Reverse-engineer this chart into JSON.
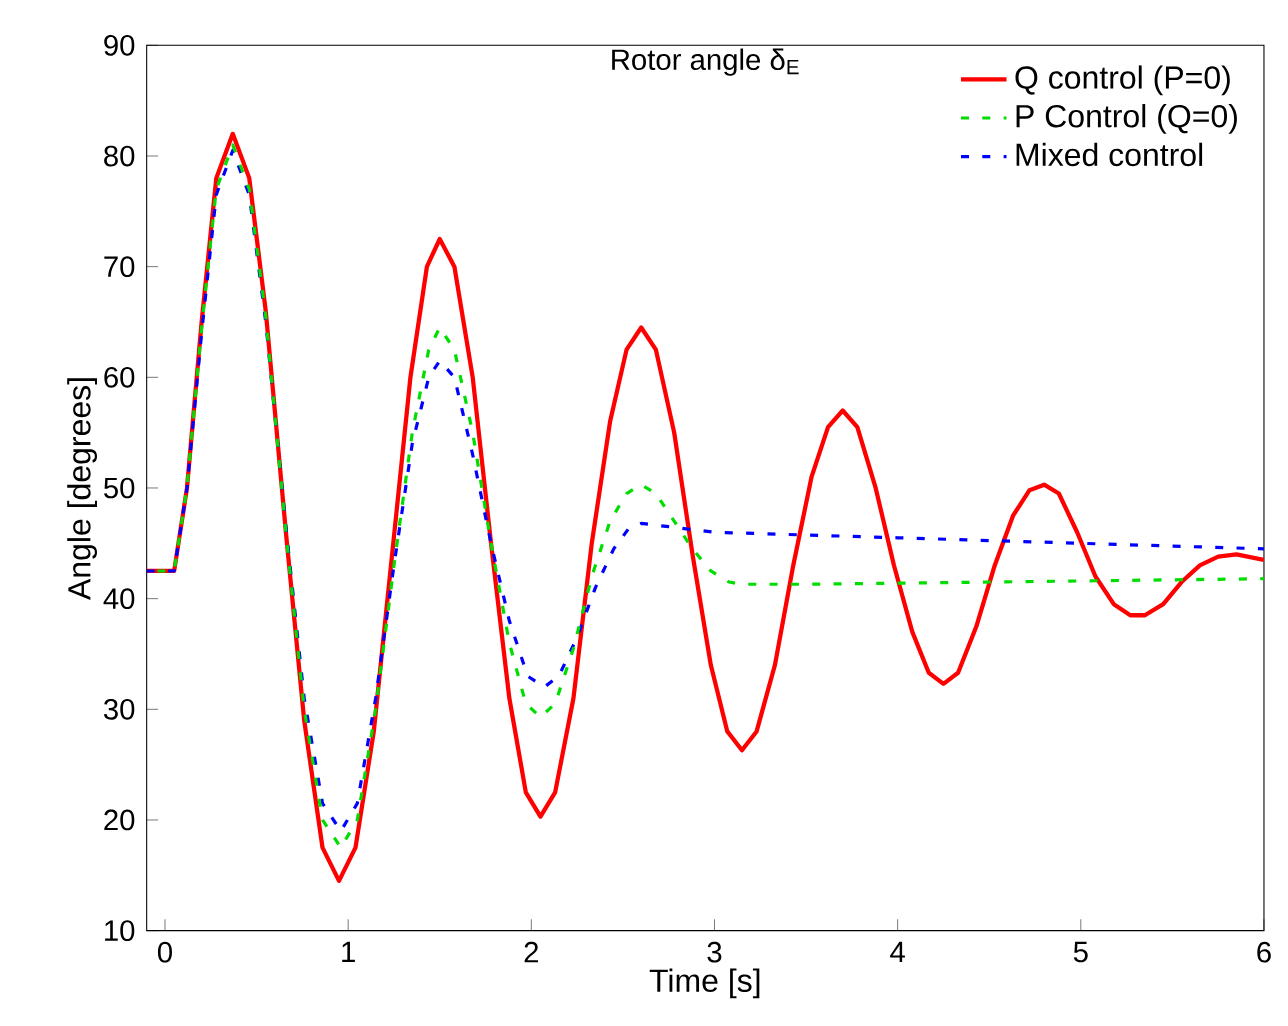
{
  "chart_data": {
    "type": "line",
    "title": "Rotor angle δ$_{E}$",
    "xlabel": "Time [s]",
    "ylabel": "Angle [degrees]",
    "xlim": [
      -0.1,
      6
    ],
    "xticks": [
      0,
      1,
      2,
      3,
      4,
      5,
      6
    ],
    "ylim": [
      10,
      90
    ],
    "yticks": [
      10,
      20,
      30,
      40,
      50,
      60,
      70,
      80,
      90
    ],
    "grid": false,
    "legend": "top right",
    "marker": "none",
    "series": [
      {
        "name": "Q control (P=0)",
        "color": "#ff0000",
        "line_style": "solid",
        "x": [
          -0.1,
          0.05,
          0.12,
          0.2,
          0.28,
          0.37,
          0.46,
          0.55,
          0.66,
          0.76,
          0.86,
          0.95,
          1.04,
          1.14,
          1.24,
          1.34,
          1.43,
          1.5,
          1.58,
          1.68,
          1.78,
          1.88,
          1.97,
          2.05,
          2.13,
          2.23,
          2.33,
          2.43,
          2.52,
          2.6,
          2.68,
          2.78,
          2.88,
          2.98,
          3.07,
          3.15,
          3.23,
          3.33,
          3.43,
          3.53,
          3.62,
          3.7,
          3.78,
          3.88,
          3.98,
          4.08,
          4.17,
          4.25,
          4.33,
          4.43,
          4.53,
          4.63,
          4.72,
          4.8,
          4.88,
          4.98,
          5.08,
          5.18,
          5.27,
          5.35,
          5.45,
          5.55,
          5.65,
          5.75,
          5.85,
          6
        ],
        "values": [
          42.5,
          42.5,
          50,
          65,
          78,
          82,
          78,
          66,
          46,
          29,
          17.5,
          14.5,
          17.5,
          28,
          44,
          60,
          70,
          72.5,
          70,
          60,
          45,
          31,
          22.5,
          20.3,
          22.5,
          31,
          45,
          56,
          62.5,
          64.5,
          62.5,
          55,
          44,
          34,
          28,
          26.3,
          28,
          34,
          43,
          51,
          55.5,
          57,
          55.5,
          50,
          43,
          37,
          33.3,
          32.3,
          33.3,
          37.5,
          43,
          47.5,
          49.8,
          50.3,
          49.5,
          46,
          42,
          39.5,
          38.5,
          38.5,
          39.5,
          41.5,
          43,
          43.8,
          44,
          43.5
        ]
      },
      {
        "name": "P Control (Q=0)",
        "color": "#00dd00",
        "line_style": "dashed",
        "x": [
          -0.1,
          0.05,
          0.12,
          0.2,
          0.28,
          0.37,
          0.46,
          0.55,
          0.66,
          0.76,
          0.86,
          0.96,
          1.05,
          1.15,
          1.25,
          1.35,
          1.44,
          1.5,
          1.58,
          1.68,
          1.78,
          1.88,
          1.97,
          2.05,
          2.13,
          2.23,
          2.33,
          2.43,
          2.52,
          2.6,
          2.68,
          2.78,
          2.88,
          2.98,
          3.08,
          3.15,
          3.5,
          4,
          5,
          6
        ],
        "values": [
          42.5,
          42.5,
          50,
          64.5,
          77,
          81,
          77,
          65.5,
          46,
          30,
          20,
          17.5,
          20,
          30,
          43,
          55,
          62.5,
          64.5,
          62.5,
          55,
          45,
          36,
          30.5,
          29.3,
          30.5,
          35.5,
          42,
          47,
          49.5,
          50.3,
          49.5,
          47,
          44.5,
          42.5,
          41.5,
          41.3,
          41.3,
          41.4,
          41.6,
          41.8
        ]
      },
      {
        "name": "Mixed control",
        "color": "#0000ff",
        "line_style": "dashed",
        "x": [
          -0.1,
          0.05,
          0.12,
          0.2,
          0.28,
          0.37,
          0.46,
          0.55,
          0.66,
          0.76,
          0.86,
          0.96,
          1.05,
          1.15,
          1.25,
          1.35,
          1.44,
          1.5,
          1.58,
          1.68,
          1.78,
          1.88,
          1.98,
          2.07,
          2.15,
          2.25,
          2.35,
          2.45,
          2.53,
          2.6,
          2.75,
          3,
          4,
          5,
          6
        ],
        "values": [
          42.5,
          42.5,
          50,
          64,
          76.5,
          80.5,
          76.5,
          65,
          46.5,
          31,
          21.5,
          19,
          21.5,
          31,
          43,
          54,
          60,
          61.5,
          60,
          53,
          45,
          38,
          33,
          32,
          33,
          36.5,
          41,
          44.5,
          46.3,
          46.8,
          46.5,
          46,
          45.5,
          45,
          44.5
        ]
      }
    ]
  }
}
